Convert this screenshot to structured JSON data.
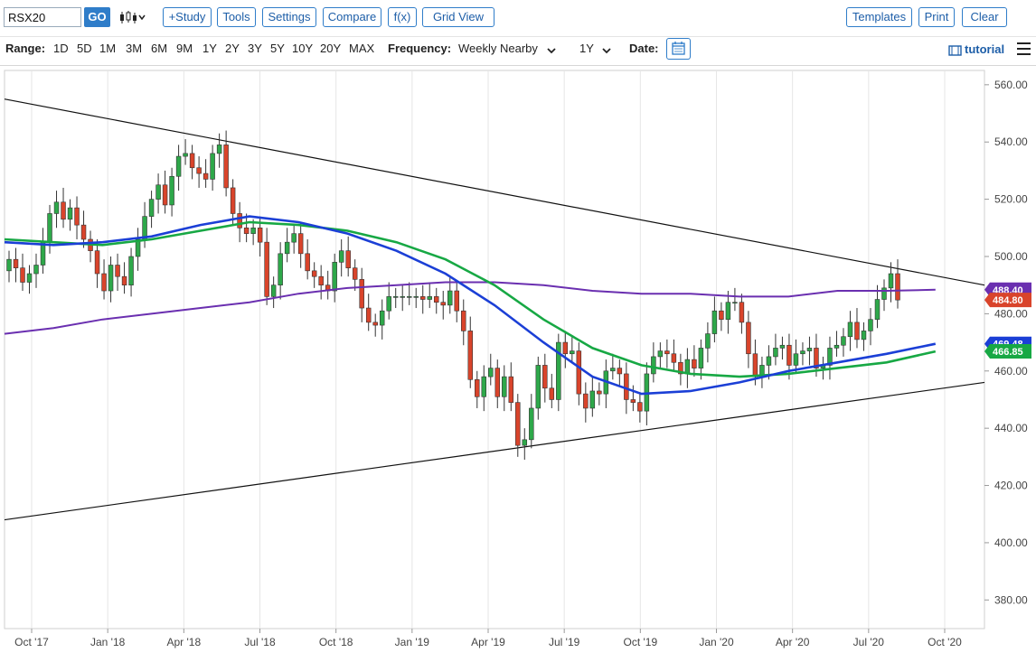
{
  "toolbar": {
    "symbol": "RSX20",
    "go_label": "GO",
    "study_label": "+Study",
    "tools_label": "Tools",
    "settings_label": "Settings",
    "compare_label": "Compare",
    "fx_label": "f(x)",
    "gridview_label": "Grid View",
    "templates_label": "Templates",
    "print_label": "Print",
    "clear_label": "Clear"
  },
  "rangebar": {
    "range_label": "Range:",
    "ranges": [
      "1D",
      "5D",
      "1M",
      "3M",
      "6M",
      "9M",
      "1Y",
      "2Y",
      "3Y",
      "5Y",
      "10Y",
      "20Y",
      "MAX"
    ],
    "frequency_label": "Frequency:",
    "frequency_value": "Weekly Nearby",
    "period_value": "1Y",
    "date_label": "Date:",
    "tutorial_label": "tutorial"
  },
  "colors": {
    "up": "#2ea84a",
    "down": "#d9442b",
    "ma_purple": "#6a2fb0",
    "ma_blue": "#1b3fd6",
    "ma_green": "#17a844",
    "accent": "#2f7dc9"
  },
  "chart_data": {
    "type": "candlestick",
    "ylim": [
      370,
      565
    ],
    "y_ticks": [
      "560.00",
      "540.00",
      "520.00",
      "500.00",
      "480.00",
      "460.00",
      "440.00",
      "420.00",
      "400.00",
      "380.00"
    ],
    "x_ticks": [
      "Oct '17",
      "Jan '18",
      "Apr '18",
      "Jul '18",
      "Oct '18",
      "Jan '19",
      "Apr '19",
      "Jul '19",
      "Oct '19",
      "Jan '20",
      "Apr '20",
      "Jul '20",
      "Oct '20"
    ],
    "price_badges": [
      {
        "label": "488.40",
        "color": "#6a2fb0"
      },
      {
        "label": "484.80",
        "color": "#d9442b"
      },
      {
        "label": "469.48",
        "color": "#1b3fd6"
      },
      {
        "label": "466.85",
        "color": "#17a844"
      }
    ],
    "candles_close": [
      499,
      496,
      491,
      494,
      497,
      505,
      515,
      519,
      513,
      517,
      511,
      506,
      502,
      494,
      488,
      497,
      493,
      490,
      500,
      506,
      514,
      520,
      525,
      518,
      528,
      535,
      536,
      531,
      529,
      527,
      536,
      539,
      524,
      515,
      510,
      508,
      510,
      505,
      486,
      490,
      501,
      505,
      508,
      501,
      495,
      493,
      490,
      488,
      498,
      502,
      496,
      492,
      482,
      477,
      476,
      481,
      486,
      486,
      486,
      486,
      486,
      485,
      486,
      484,
      483,
      488,
      481,
      474,
      457,
      451,
      458,
      461,
      451,
      458,
      449,
      434,
      436,
      447,
      462,
      454,
      450,
      470,
      466,
      467,
      452,
      447,
      453,
      452,
      460,
      461,
      459,
      450,
      449,
      446,
      459,
      465,
      467,
      466,
      463,
      459,
      464,
      461,
      468,
      473,
      481,
      478,
      484,
      484,
      477,
      466,
      458,
      462,
      465,
      468,
      469,
      462,
      466,
      467,
      468,
      461,
      462,
      468,
      469,
      472,
      477,
      471,
      474,
      478,
      485,
      489,
      494,
      484.8
    ],
    "ma_purple": [
      [
        0,
        473
      ],
      [
        0.05,
        475
      ],
      [
        0.1,
        478
      ],
      [
        0.15,
        480
      ],
      [
        0.2,
        482
      ],
      [
        0.25,
        484
      ],
      [
        0.3,
        487
      ],
      [
        0.35,
        489
      ],
      [
        0.4,
        490
      ],
      [
        0.45,
        491
      ],
      [
        0.5,
        491
      ],
      [
        0.55,
        490
      ],
      [
        0.6,
        488
      ],
      [
        0.65,
        487
      ],
      [
        0.7,
        487
      ],
      [
        0.75,
        486
      ],
      [
        0.8,
        486
      ],
      [
        0.85,
        488
      ],
      [
        0.9,
        488
      ],
      [
        0.95,
        488.4
      ]
    ],
    "ma_blue": [
      [
        0,
        505
      ],
      [
        0.05,
        504
      ],
      [
        0.1,
        505
      ],
      [
        0.15,
        507
      ],
      [
        0.2,
        511
      ],
      [
        0.25,
        514
      ],
      [
        0.3,
        512
      ],
      [
        0.35,
        508
      ],
      [
        0.4,
        502
      ],
      [
        0.45,
        494
      ],
      [
        0.5,
        483
      ],
      [
        0.55,
        470
      ],
      [
        0.6,
        458
      ],
      [
        0.65,
        452
      ],
      [
        0.7,
        453
      ],
      [
        0.75,
        456
      ],
      [
        0.8,
        460
      ],
      [
        0.85,
        463
      ],
      [
        0.9,
        466
      ],
      [
        0.95,
        469.5
      ]
    ],
    "ma_green": [
      [
        0,
        506
      ],
      [
        0.05,
        505
      ],
      [
        0.1,
        504
      ],
      [
        0.15,
        506
      ],
      [
        0.2,
        509
      ],
      [
        0.25,
        512
      ],
      [
        0.3,
        511
      ],
      [
        0.35,
        509
      ],
      [
        0.4,
        505
      ],
      [
        0.45,
        499
      ],
      [
        0.5,
        490
      ],
      [
        0.55,
        478
      ],
      [
        0.6,
        468
      ],
      [
        0.65,
        462
      ],
      [
        0.7,
        459
      ],
      [
        0.75,
        458
      ],
      [
        0.8,
        459
      ],
      [
        0.85,
        461
      ],
      [
        0.9,
        463
      ],
      [
        0.95,
        466.85
      ]
    ],
    "trendlines": [
      {
        "name": "upper",
        "from": [
          0,
          555
        ],
        "to": [
          1,
          490
        ]
      },
      {
        "name": "lower",
        "from": [
          0,
          408
        ],
        "to": [
          1,
          456
        ]
      }
    ]
  }
}
